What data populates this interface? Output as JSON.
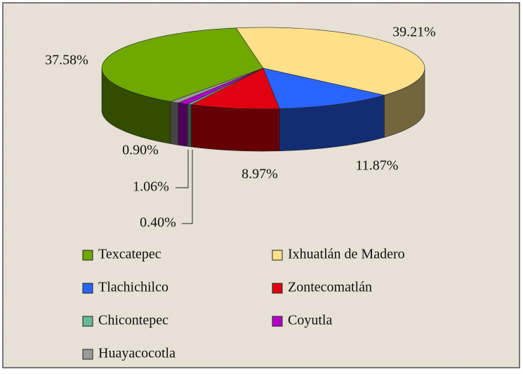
{
  "chart_data": {
    "type": "pie3d",
    "categories": [
      "Texcatepec",
      "Ixhuatlán de Madero",
      "Tlachichilco",
      "Zontecomatlán",
      "Chicontepec",
      "Coyutla",
      "Huayacocotla"
    ],
    "values": [
      37.58,
      39.21,
      11.87,
      8.97,
      0.4,
      1.06,
      0.9
    ],
    "value_labels": [
      "37.58%",
      "39.21%",
      "11.87%",
      "8.97%",
      "0.40%",
      "1.06%",
      "0.90%"
    ],
    "colors": [
      "#6fa800",
      "#ffe08a",
      "#2a64ff",
      "#e00010",
      "#6ab898",
      "#b000c8",
      "#9a9a9a"
    ],
    "legend": "bottom"
  }
}
